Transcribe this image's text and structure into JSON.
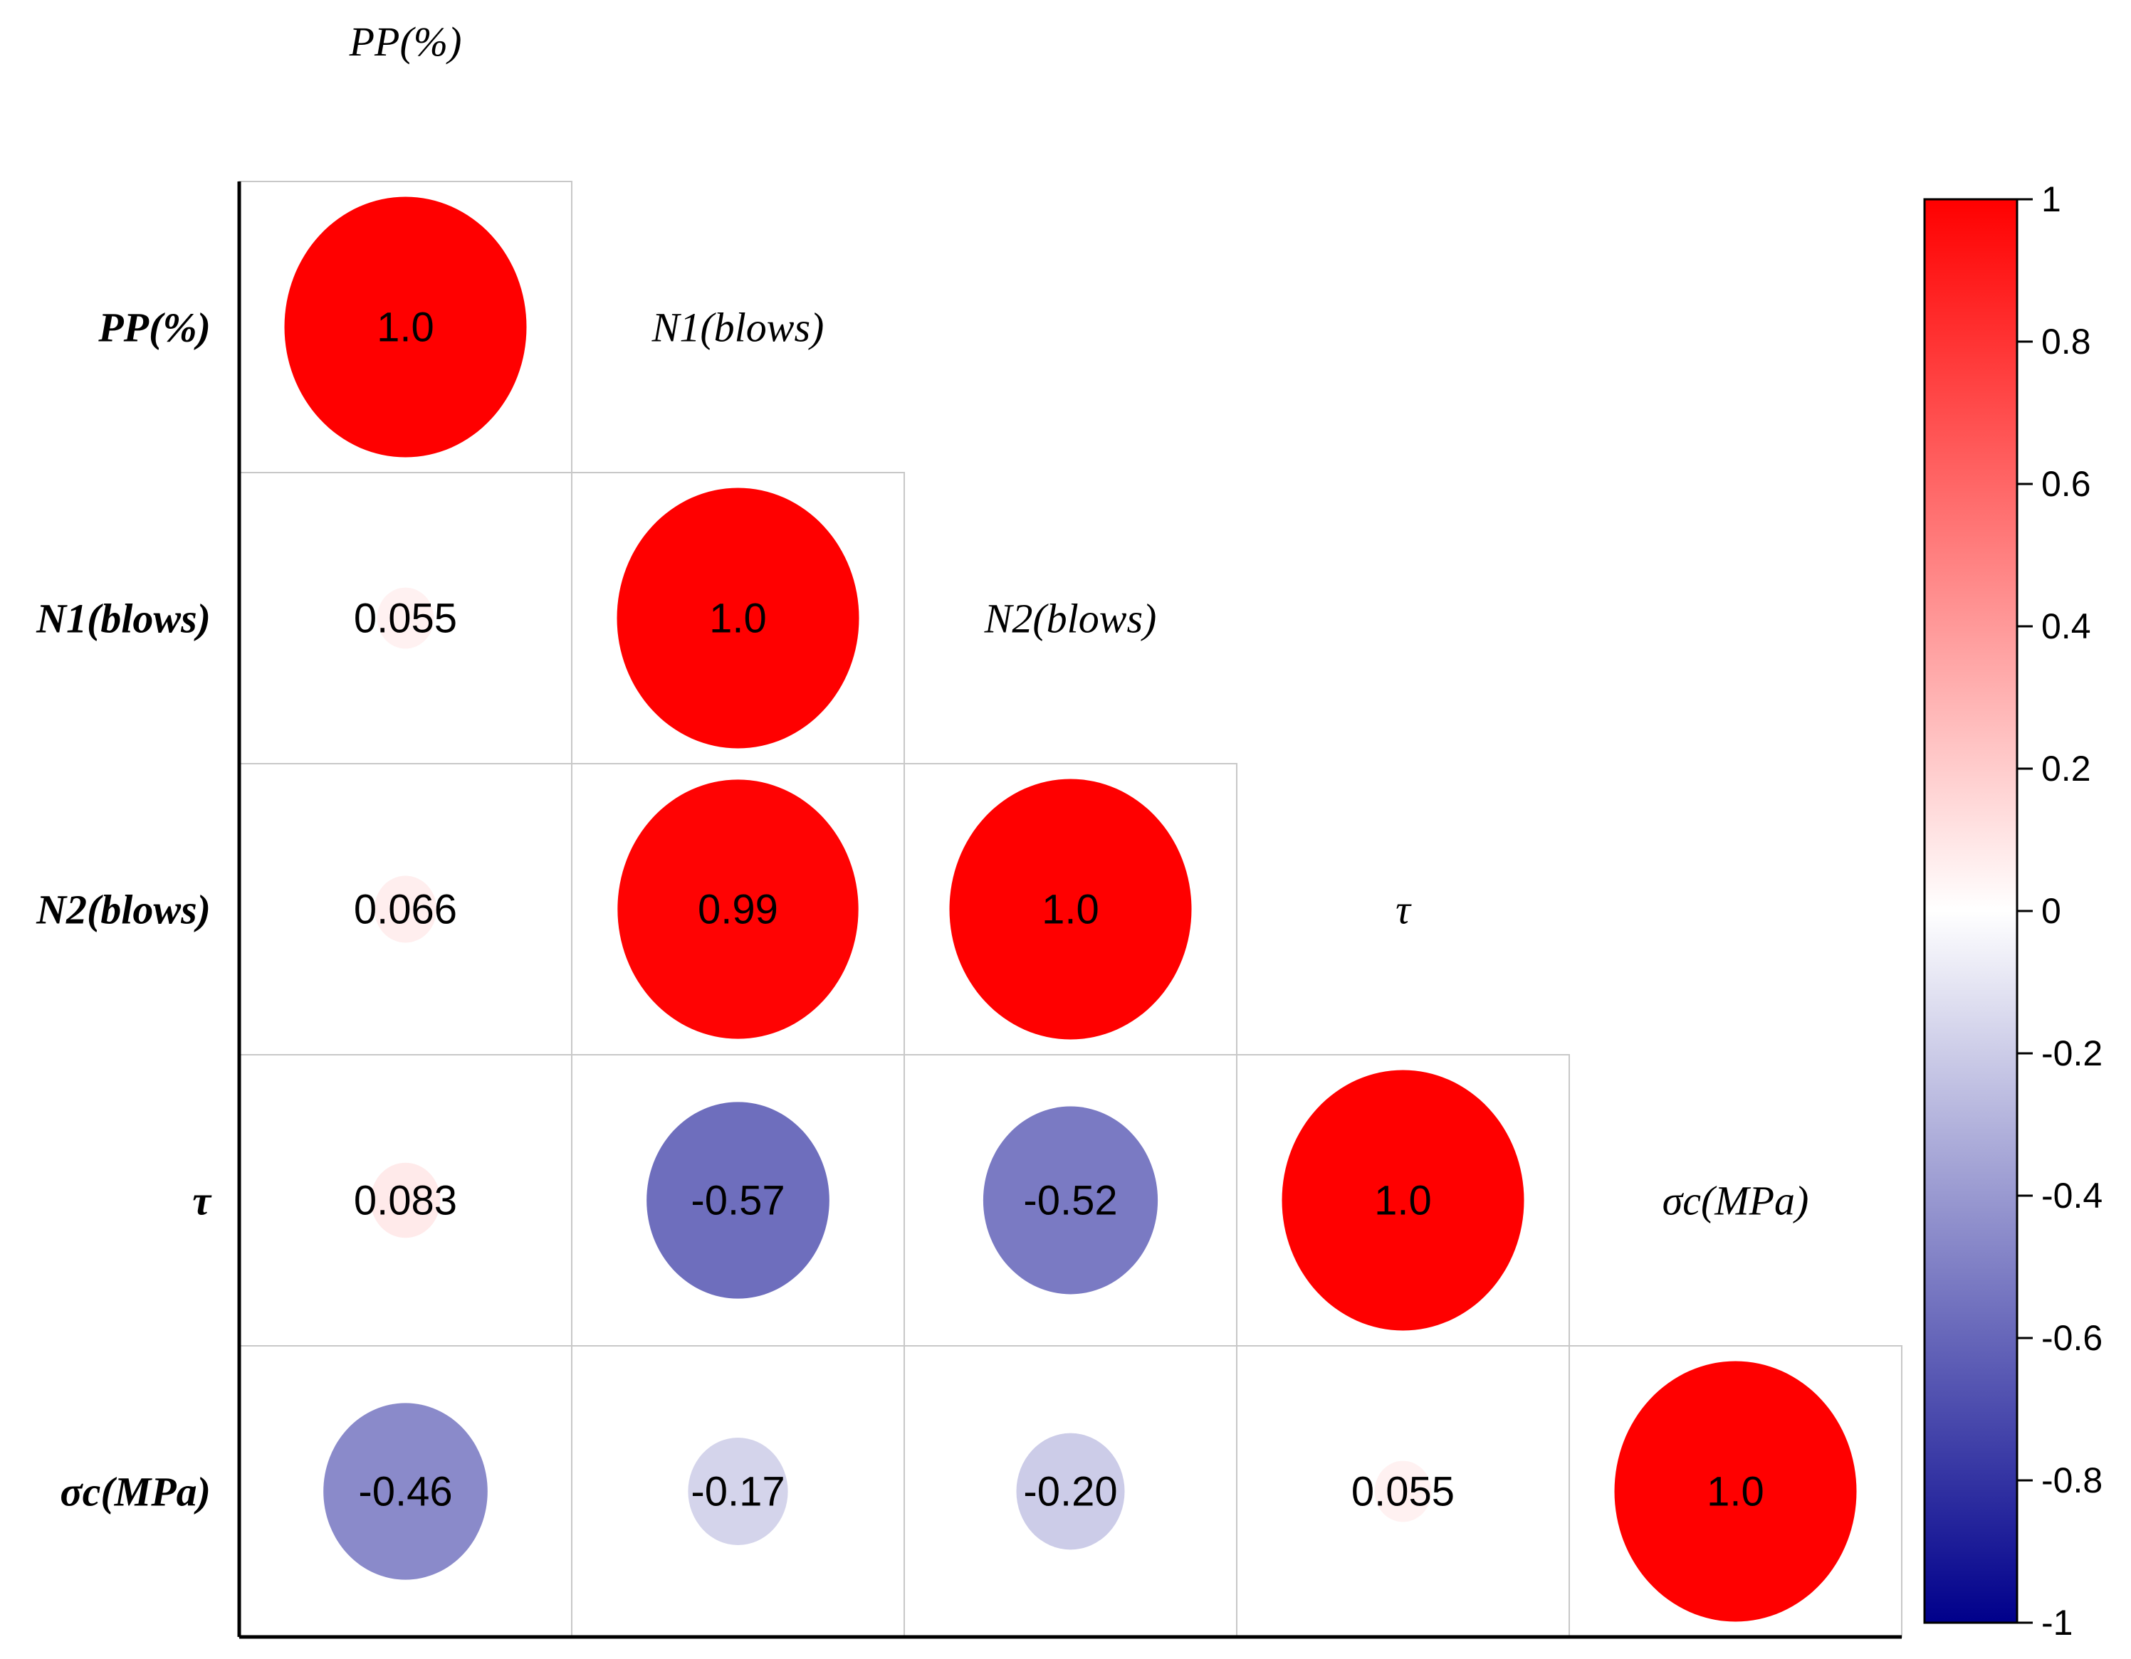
{
  "chart_data": {
    "type": "heatmap",
    "variant": "lower-triangular correlation matrix with circles",
    "variables": [
      "PP(%)",
      "N1(blows)",
      "N2(blows)",
      "τ",
      "σc(MPa)"
    ],
    "matrix": [
      [
        1.0,
        null,
        null,
        null,
        null
      ],
      [
        0.055,
        1.0,
        null,
        null,
        null
      ],
      [
        0.066,
        0.99,
        1.0,
        null,
        null
      ],
      [
        0.083,
        -0.57,
        -0.52,
        1.0,
        null
      ],
      [
        -0.46,
        -0.17,
        -0.2,
        0.055,
        1.0
      ]
    ],
    "labels": [
      [
        "1.0",
        null,
        null,
        null,
        null
      ],
      [
        "0.055",
        "1.0",
        null,
        null,
        null
      ],
      [
        "0.066",
        "0.99",
        "1.0",
        null,
        null
      ],
      [
        "0.083",
        "-0.57",
        "-0.52",
        "1.0",
        null
      ],
      [
        "-0.46",
        "-0.17",
        "-0.20",
        "0.055",
        "1.0"
      ]
    ],
    "colorbar": {
      "range": [
        -1,
        1
      ],
      "ticks": [
        "1",
        "0.8",
        "0.6",
        "0.4",
        "0.2",
        "0",
        "-0.2",
        "-0.4",
        "-0.6",
        "-0.8",
        "-1"
      ],
      "tick_values": [
        1,
        0.8,
        0.6,
        0.4,
        0.2,
        0,
        -0.2,
        -0.4,
        -0.6,
        -0.8,
        -1
      ],
      "colors": {
        "positive": "#ff0000",
        "zero": "#ffffff",
        "negative": "#00008b"
      },
      "placement": "right"
    }
  }
}
